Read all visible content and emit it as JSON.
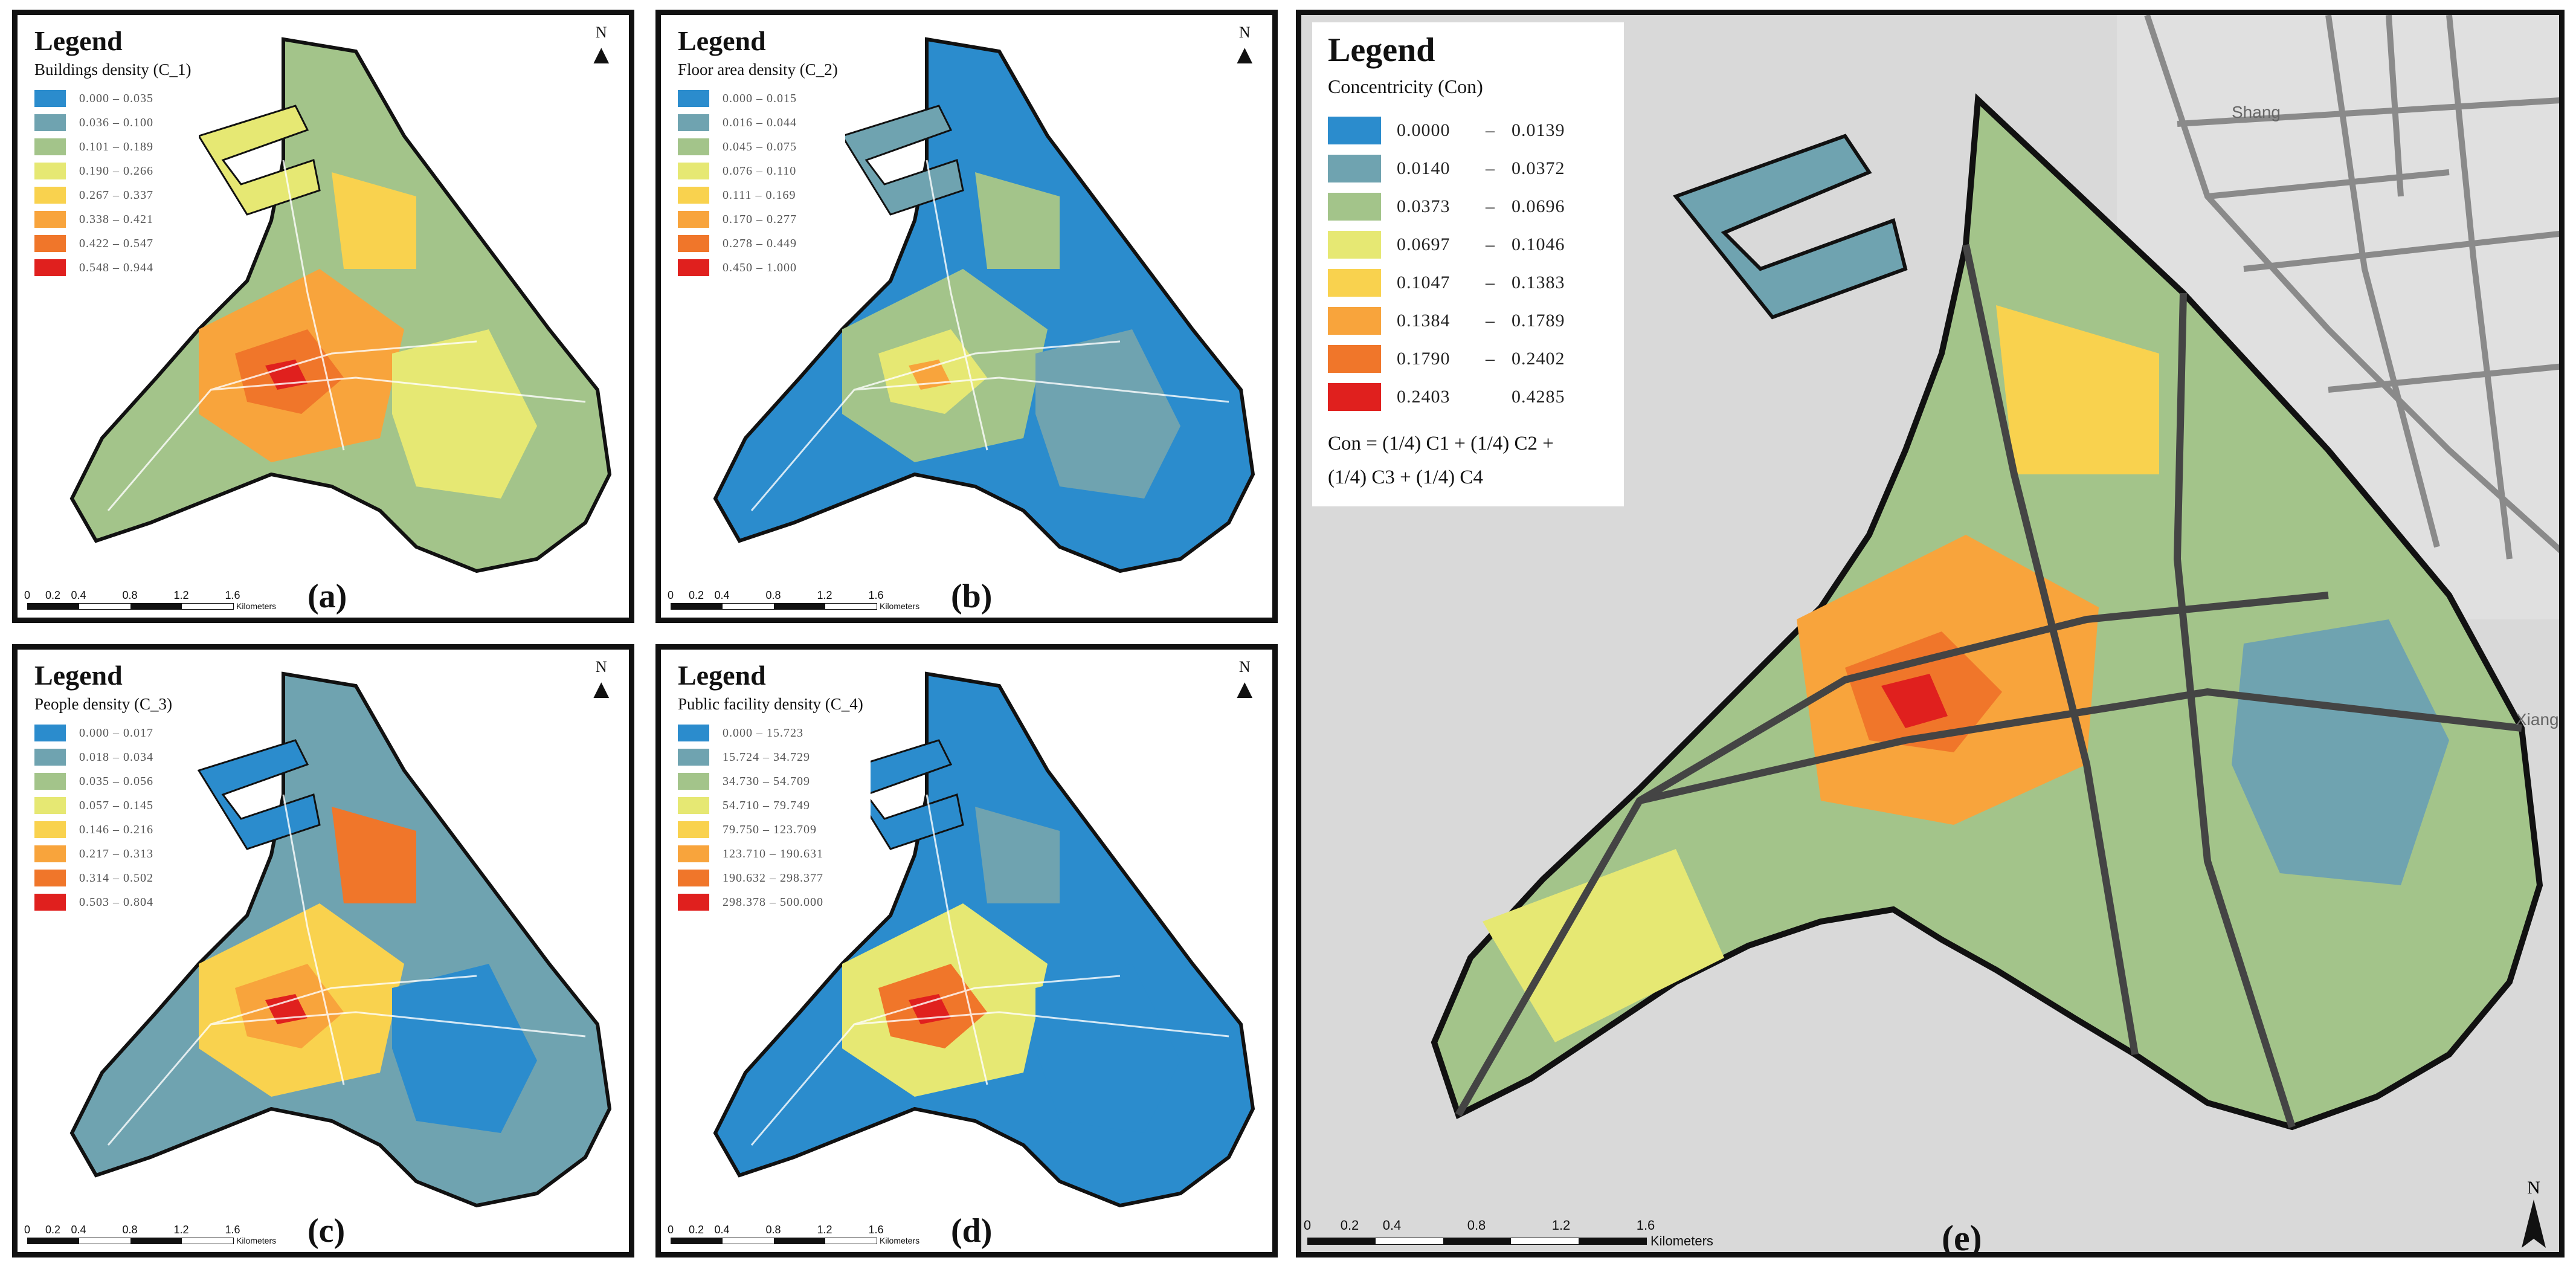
{
  "colors": [
    "#2b8ccd",
    "#6fa3b0",
    "#a3c48a",
    "#e6e873",
    "#f9d24e",
    "#f8a43c",
    "#f0762a",
    "#e0201e"
  ],
  "panels": [
    {
      "id": "a",
      "legend_title": "Legend",
      "subtitle": "Buildings density (C_1)",
      "ranges": [
        "0.000 – 0.035",
        "0.036 – 0.100",
        "0.101 – 0.189",
        "0.190 – 0.266",
        "0.267 – 0.337",
        "0.338 – 0.421",
        "0.422 – 0.547",
        "0.548 – 0.944"
      ],
      "label": "(a)",
      "scale_ticks": [
        "0",
        "0.2",
        "0.4",
        "0.8",
        "1.2",
        "1.6"
      ],
      "scale_unit": "Kilometers"
    },
    {
      "id": "b",
      "legend_title": "Legend",
      "subtitle": "Floor area density (C_2)",
      "ranges": [
        "0.000 – 0.015",
        "0.016 – 0.044",
        "0.045 – 0.075",
        "0.076 – 0.110",
        "0.111 – 0.169",
        "0.170 – 0.277",
        "0.278 – 0.449",
        "0.450 – 1.000"
      ],
      "label": "(b)",
      "scale_ticks": [
        "0",
        "0.2",
        "0.4",
        "0.8",
        "1.2",
        "1.6"
      ],
      "scale_unit": "Kilometers"
    },
    {
      "id": "c",
      "legend_title": "Legend",
      "subtitle": "People density (C_3)",
      "ranges": [
        "0.000 – 0.017",
        "0.018 – 0.034",
        "0.035 – 0.056",
        "0.057 – 0.145",
        "0.146 – 0.216",
        "0.217 – 0.313",
        "0.314 – 0.502",
        "0.503 – 0.804"
      ],
      "label": "(c)",
      "scale_ticks": [
        "0",
        "0.2",
        "0.4",
        "0.8",
        "1.2",
        "1.6"
      ],
      "scale_unit": "Kilometers"
    },
    {
      "id": "d",
      "legend_title": "Legend",
      "subtitle": "Public facility density (C_4)",
      "ranges": [
        "0.000 – 15.723",
        "15.724 – 34.729",
        "34.730 – 54.709",
        "54.710 – 79.749",
        "79.750 – 123.709",
        "123.710 – 190.631",
        "190.632 – 298.377",
        "298.378 – 500.000"
      ],
      "label": "(d)",
      "scale_ticks": [
        "0",
        "0.2",
        "0.4",
        "0.8",
        "1.2",
        "1.6"
      ],
      "scale_unit": "Kilometers"
    }
  ],
  "main": {
    "legend_title": "Legend",
    "subtitle": "Concentricity (Con)",
    "ranges": [
      [
        "0.0000",
        "–",
        "0.0139"
      ],
      [
        "0.0140",
        "–",
        "0.0372"
      ],
      [
        "0.0373",
        "–",
        "0.0696"
      ],
      [
        "0.0697",
        "–",
        "0.1046"
      ],
      [
        "0.1047",
        "–",
        "0.1383"
      ],
      [
        "0.1384",
        "–",
        "0.1789"
      ],
      [
        "0.1790",
        "–",
        "0.2402"
      ],
      [
        "0.2403",
        "",
        "0.4285"
      ]
    ],
    "formula_line1": "Con = (1/4) C1 + (1/4) C2 +",
    "formula_line2": "(1/4) C3 + (1/4) C4",
    "label": "(e)",
    "north": "N",
    "scale_ticks": [
      "0",
      "0.2",
      "0.4",
      "0.8",
      "1.2",
      "1.6"
    ],
    "scale_unit": "Kilometers",
    "place_labels": [
      "Shang",
      "Xiang"
    ]
  },
  "north": "N"
}
